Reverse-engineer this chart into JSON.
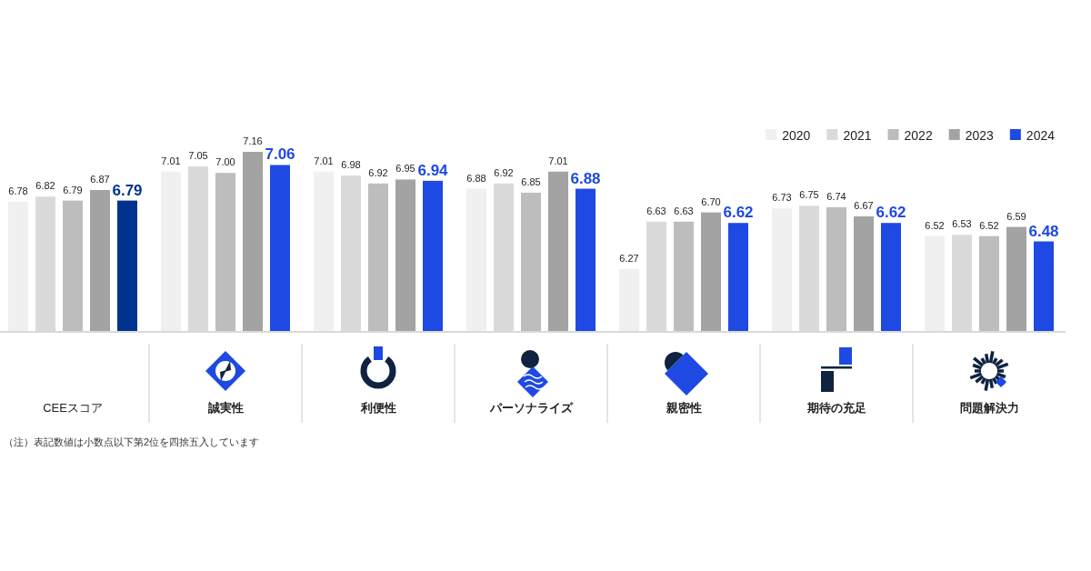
{
  "chart_data": {
    "type": "bar",
    "categories": [
      "CEEスコア",
      "誠実性",
      "利便性",
      "パーソナライズ",
      "親密性",
      "期待の充足",
      "問題解決力"
    ],
    "series": [
      {
        "name": "2020",
        "color": "#f0f0f0",
        "values": [
          6.78,
          7.01,
          7.01,
          6.88,
          6.27,
          6.73,
          6.52
        ],
        "value_labels": [
          "6.78",
          "7.01",
          "7.01",
          "6.88",
          "6.27",
          "6.73",
          "6.52"
        ]
      },
      {
        "name": "2021",
        "color": "#dadada",
        "values": [
          6.82,
          7.05,
          6.98,
          6.92,
          6.63,
          6.75,
          6.53
        ],
        "value_labels": [
          "6.82",
          "7.05",
          "6.98",
          "6.92",
          "6.63",
          "6.75",
          "6.53"
        ]
      },
      {
        "name": "2022",
        "color": "#bdbdbd",
        "values": [
          6.79,
          7.0,
          6.92,
          6.85,
          6.63,
          6.74,
          6.52
        ],
        "value_labels": [
          "6.79",
          "7.00",
          "6.92",
          "6.85",
          "6.63",
          "6.74",
          "6.52"
        ]
      },
      {
        "name": "2023",
        "color": "#a3a3a3",
        "values": [
          6.87,
          7.16,
          6.95,
          7.01,
          6.7,
          6.67,
          6.59
        ],
        "value_labels": [
          "6.87",
          "7.16",
          "6.95",
          "7.01",
          "6.70",
          "6.67",
          "6.59"
        ]
      },
      {
        "name": "2024",
        "color": "#1e49e2",
        "colors": [
          "#00338d",
          "#1e49e2",
          "#1e49e2",
          "#1e49e2",
          "#1e49e2",
          "#1e49e2",
          "#1e49e2"
        ],
        "values": [
          6.79,
          7.06,
          6.94,
          6.88,
          6.62,
          6.62,
          6.48
        ],
        "value_labels": [
          "6.79",
          "7.06",
          "6.94",
          "6.88",
          "6.62",
          "6.62",
          "6.48"
        ]
      }
    ],
    "ylim": [
      5.8,
      7.16
    ],
    "tick_labels": "x",
    "legend": "top right",
    "annotations": [
      "（注）表記数値は小数点以下第2位を四捨五入しています"
    ]
  }
}
